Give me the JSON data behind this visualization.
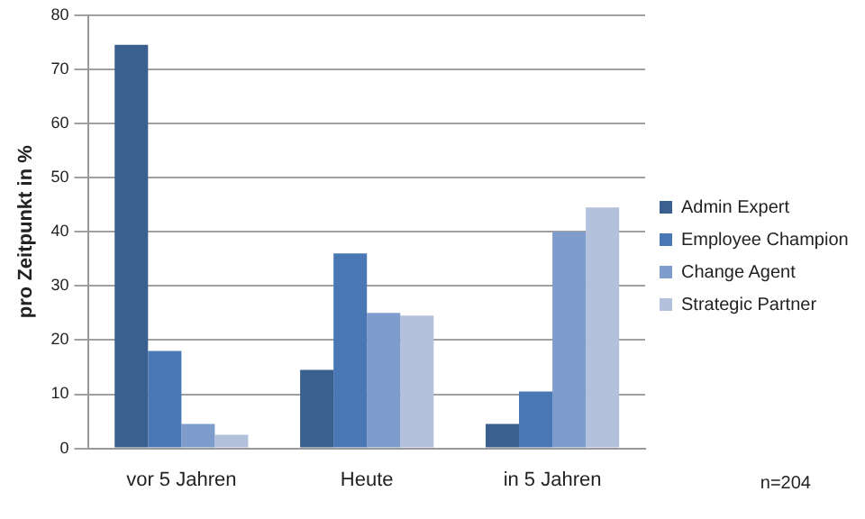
{
  "chart_data": {
    "type": "bar",
    "ylabel": "pro Zeitpunkt in %",
    "categories": [
      "vor 5 Jahren",
      "Heute",
      "in 5 Jahren"
    ],
    "series": [
      {
        "name": "Admin Expert",
        "color": "#3b5f8e",
        "values": [
          74.5,
          14.5,
          4.5
        ]
      },
      {
        "name": "Employee Champion",
        "color": "#4a78b4",
        "values": [
          18,
          36,
          10.5
        ]
      },
      {
        "name": "Change Agent",
        "color": "#7f9dcc",
        "values": [
          4.5,
          25,
          40
        ]
      },
      {
        "name": "Strategic Partner",
        "color": "#b3c1dc",
        "values": [
          2.5,
          24.5,
          44.5
        ]
      }
    ],
    "ylim": [
      0,
      80
    ],
    "yticks": [
      0,
      10,
      20,
      30,
      40,
      50,
      60,
      70,
      80
    ],
    "grid": "y",
    "legend": "right",
    "annotations": [
      "n=204"
    ]
  }
}
